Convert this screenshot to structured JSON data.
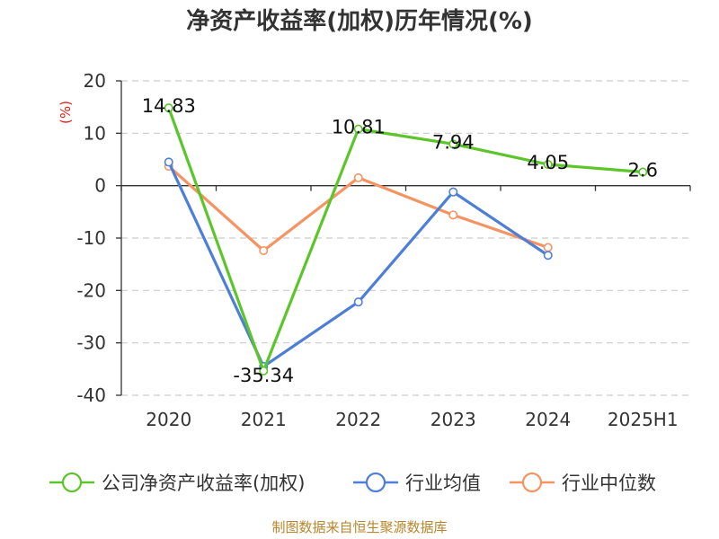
{
  "chart_data": {
    "type": "line",
    "title": "净资产收益率(加权)历年情况(%)",
    "ylabel": "(%)",
    "categories": [
      "2020",
      "2021",
      "2022",
      "2023",
      "2024",
      "2025H1"
    ],
    "ylim": [
      -40,
      20
    ],
    "yticks": [
      20,
      10,
      0,
      -10,
      -20,
      -30,
      -40
    ],
    "ytick_labels": [
      "20",
      "10",
      "0",
      "-10",
      "-20",
      "-30",
      "-40"
    ],
    "grid": true,
    "legend_position": "bottom",
    "series": [
      {
        "name": "公司净资产收益率(加权)",
        "color": "#5cc52a",
        "values": [
          14.83,
          -35.34,
          10.81,
          7.94,
          4.05,
          2.6
        ],
        "labels": [
          "14.83",
          "-35.34",
          "10.81",
          "7.94",
          "4.05",
          "2.6"
        ]
      },
      {
        "name": "行业均值",
        "color": "#4e7fd8",
        "values": [
          4.5,
          -34.5,
          -22.2,
          -1.2,
          -13.3,
          null
        ]
      },
      {
        "name": "行业中位数",
        "color": "#f59462",
        "values": [
          3.7,
          -12.4,
          1.5,
          -5.6,
          -11.8,
          null
        ]
      }
    ]
  },
  "source": "制图数据来自恒生聚源数据库"
}
